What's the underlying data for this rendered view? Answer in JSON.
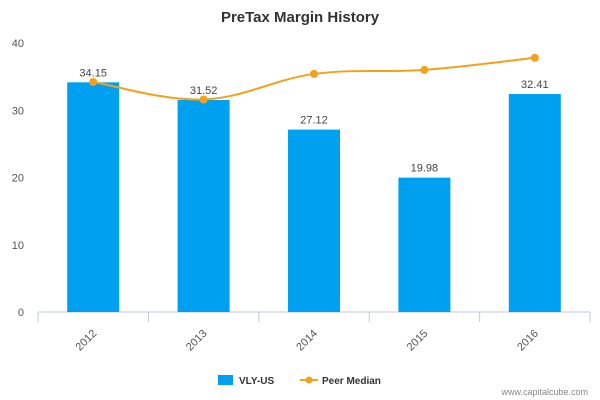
{
  "chart_data": {
    "type": "bar",
    "title": "PreTax Margin History",
    "xlabel": "",
    "ylabel": "",
    "categories": [
      "2012",
      "2013",
      "2014",
      "2015",
      "2016"
    ],
    "ylim": [
      0,
      40
    ],
    "yticks": [
      0,
      10,
      20,
      30,
      40
    ],
    "grid": false,
    "legend_placement": "bottom",
    "series": [
      {
        "name": "VLY-US",
        "type": "bar",
        "color": "#00a0f0",
        "values": [
          34.15,
          31.52,
          27.12,
          19.98,
          32.41
        ],
        "labels": [
          "34.15",
          "31.52",
          "27.12",
          "19.98",
          "32.41"
        ]
      },
      {
        "name": "Peer Median",
        "type": "line",
        "color": "#f5a01a",
        "values": [
          34.2,
          31.6,
          35.4,
          36.0,
          37.8
        ]
      }
    ]
  },
  "credit": "www.capitalcube.com"
}
